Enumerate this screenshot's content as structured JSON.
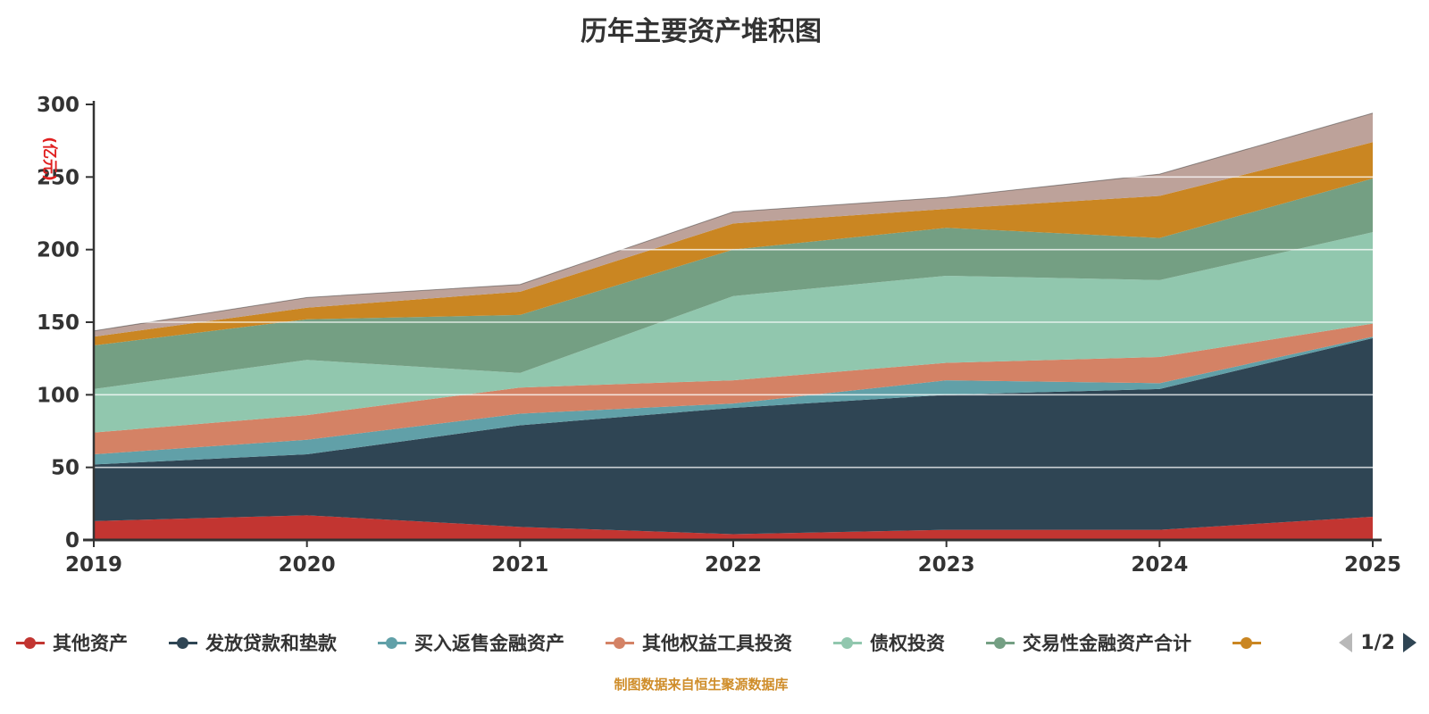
{
  "page_background": "#ffffff",
  "title_color": "#333333",
  "caption": "制图数据来自恒生聚源数据库",
  "caption_color": "#cf8d2a",
  "legend": {
    "pagination": "1/2",
    "prev_color": "#b8b8b8",
    "next_color": "#2f4554"
  },
  "chart_data": {
    "type": "area",
    "stacked": true,
    "title": "历年主要资产堆积图",
    "categories": [
      "2019",
      "2020",
      "2021",
      "2022",
      "2023",
      "2024",
      "2025"
    ],
    "series": [
      {
        "name": "其他资产",
        "color": "#c23531",
        "values": [
          13,
          17,
          9,
          4,
          7,
          7,
          16
        ]
      },
      {
        "name": "发放贷款和垫款",
        "color": "#2f4554",
        "values": [
          39,
          42,
          70,
          87,
          93,
          97,
          123
        ]
      },
      {
        "name": "买入返售金融资产",
        "color": "#61a0a8",
        "values": [
          7,
          10,
          8,
          3,
          10,
          4,
          1
        ]
      },
      {
        "name": "其他权益工具投资",
        "color": "#d48265",
        "values": [
          15,
          17,
          18,
          16,
          12,
          18,
          9
        ]
      },
      {
        "name": "债权投资",
        "color": "#91c7ae",
        "values": [
          30,
          38,
          10,
          58,
          60,
          53,
          63
        ]
      },
      {
        "name": "交易性金融资产合计",
        "color": "#749f83",
        "values": [
          30,
          28,
          40,
          32,
          33,
          29,
          37
        ]
      },
      {
        "name": "",
        "color": "#ca8622",
        "values": [
          6,
          8,
          16,
          18,
          13,
          29,
          25
        ]
      },
      {
        "name": "",
        "color": "#bda29a",
        "values": [
          4,
          7,
          5,
          8,
          8,
          15,
          20
        ]
      }
    ],
    "totals": [
      144,
      167,
      176,
      226,
      236,
      252,
      294
    ],
    "ylim": [
      0,
      300
    ],
    "y_tick_step": 50,
    "y_ticks": [
      "0",
      "50",
      "100",
      "150",
      "200",
      "250",
      "300"
    ],
    "y_unit": "(亿元)",
    "y_unit_color": "#e02020",
    "axis_color": "#333333",
    "gridline_color": "rgba(255,255,255,0.75)",
    "grid": true,
    "legend_position": "bottom",
    "legend_visible_items": 7
  }
}
